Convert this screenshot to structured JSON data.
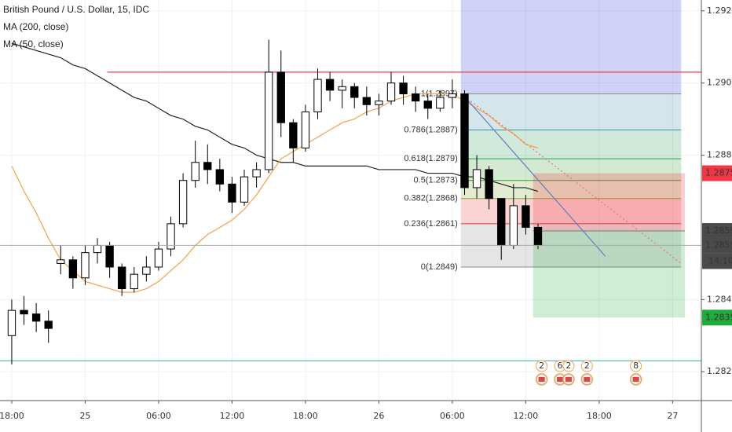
{
  "chart_data": {
    "type": "candlestick",
    "title": "British Pound / U.S. Dollar, 15, IDC",
    "x": [
      0,
      1,
      2,
      3,
      4,
      5,
      6,
      7,
      8,
      9,
      10,
      11,
      12,
      13,
      14,
      15,
      16,
      17,
      18,
      19,
      20,
      21,
      22,
      23,
      24,
      25,
      26,
      27,
      28,
      29,
      30,
      31,
      32,
      33,
      34,
      35,
      36,
      37,
      38,
      39,
      40,
      41,
      42,
      43
    ],
    "open": [
      1.283,
      1.2837,
      1.2836,
      1.2834,
      1.285,
      1.2851,
      1.2846,
      1.2853,
      1.2855,
      1.2849,
      1.2843,
      1.2847,
      1.2849,
      1.2854,
      1.2861,
      1.2873,
      1.2878,
      1.2876,
      1.2872,
      1.2867,
      1.2874,
      1.2876,
      1.2903,
      1.2889,
      1.2882,
      1.2892,
      1.2901,
      1.2898,
      1.2899,
      1.2896,
      1.2894,
      1.2895,
      1.29,
      1.2897,
      1.2895,
      1.2893,
      1.2896,
      1.2897,
      1.2871,
      1.2876,
      1.2868,
      1.2855,
      1.2866,
      1.286
    ],
    "high": [
      1.284,
      1.2841,
      1.2839,
      1.2837,
      1.2855,
      1.2852,
      1.2855,
      1.2857,
      1.2856,
      1.285,
      1.2849,
      1.2852,
      1.2856,
      1.2863,
      1.2875,
      1.2884,
      1.2883,
      1.2879,
      1.2874,
      1.2876,
      1.2878,
      1.2912,
      1.2909,
      1.289,
      1.2894,
      1.2904,
      1.2903,
      1.2901,
      1.29,
      1.2899,
      1.2897,
      1.2903,
      1.2902,
      1.2899,
      1.2897,
      1.2898,
      1.2901,
      1.2898,
      1.288,
      1.2877,
      1.2868,
      1.2872,
      1.2869,
      1.2861
    ],
    "low": [
      1.2822,
      1.2833,
      1.2831,
      1.2828,
      1.2847,
      1.2843,
      1.2844,
      1.285,
      1.2846,
      1.2841,
      1.2842,
      1.2845,
      1.2848,
      1.2852,
      1.286,
      1.2871,
      1.2872,
      1.287,
      1.2864,
      1.2866,
      1.2871,
      1.2875,
      1.2885,
      1.2878,
      1.2881,
      1.289,
      1.2895,
      1.2893,
      1.2893,
      1.2891,
      1.2891,
      1.2894,
      1.2894,
      1.2892,
      1.289,
      1.2892,
      1.2893,
      1.2869,
      1.2868,
      1.2865,
      1.2851,
      1.2854,
      1.2858,
      1.2854
    ],
    "close": [
      1.2837,
      1.2836,
      1.2834,
      1.2832,
      1.2851,
      1.2846,
      1.2853,
      1.2855,
      1.2849,
      1.2843,
      1.2847,
      1.2849,
      1.2854,
      1.2861,
      1.2873,
      1.2878,
      1.2876,
      1.2872,
      1.2867,
      1.2874,
      1.2876,
      1.2903,
      1.2889,
      1.2882,
      1.2892,
      1.2901,
      1.2898,
      1.2899,
      1.2896,
      1.2894,
      1.2895,
      1.29,
      1.2897,
      1.2895,
      1.2893,
      1.2896,
      1.2897,
      1.2871,
      1.2876,
      1.2868,
      1.2855,
      1.2866,
      1.286,
      1.2855
    ],
    "series": [
      {
        "name": "MA (200, close)",
        "color": "#222222",
        "values": [
          1.2911,
          1.291,
          1.2909,
          1.2908,
          1.2907,
          1.2905,
          1.2904,
          1.2902,
          1.29,
          1.2898,
          1.2896,
          1.2895,
          1.2893,
          1.2891,
          1.289,
          1.2888,
          1.2887,
          1.2885,
          1.2883,
          1.2882,
          1.288,
          1.2879,
          1.2878,
          1.2878,
          1.2877,
          1.2877,
          1.2877,
          1.2877,
          1.2877,
          1.2877,
          1.2876,
          1.2876,
          1.2876,
          1.2876,
          1.2875,
          1.2875,
          1.2875,
          1.2874,
          1.2874,
          1.2873,
          1.2872,
          1.2871,
          1.2871,
          1.287
        ]
      },
      {
        "name": "MA (50, close)",
        "color": "#f5a04a",
        "values": [
          1.2877,
          1.287,
          1.2864,
          1.2857,
          1.2851,
          1.2848,
          1.2845,
          1.2844,
          1.2843,
          1.2842,
          1.2842,
          1.2843,
          1.2845,
          1.2848,
          1.2851,
          1.2855,
          1.2858,
          1.286,
          1.2862,
          1.2865,
          1.2869,
          1.2874,
          1.2879,
          1.2881,
          1.2883,
          1.2885,
          1.2887,
          1.2889,
          1.289,
          1.2892,
          1.2893,
          1.2895,
          1.2896,
          1.2897,
          1.2897,
          1.2897,
          1.2897,
          1.2895,
          1.2893,
          1.2891,
          1.2888,
          1.2886,
          1.2883,
          1.2882
        ]
      }
    ],
    "xlim": [
      -0.96,
      56.35
    ],
    "ylim": [
      1.2812,
      1.2923
    ],
    "xticks": [
      {
        "value": 0,
        "label": "18:00"
      },
      {
        "value": 6,
        "label": "25"
      },
      {
        "value": 12,
        "label": "06:00"
      },
      {
        "value": 18,
        "label": "12:00"
      },
      {
        "value": 24,
        "label": "18:00"
      },
      {
        "value": 30,
        "label": "26"
      },
      {
        "value": 36,
        "label": "06:00"
      },
      {
        "value": 42,
        "label": "12:00"
      },
      {
        "value": 48,
        "label": "18:00"
      },
      {
        "value": 54,
        "label": "27"
      }
    ],
    "yticks": [
      {
        "value": 1.292,
        "label": "1.2920"
      },
      {
        "value": 1.29,
        "label": "1.2900"
      },
      {
        "value": 1.288,
        "label": "1.2880"
      },
      {
        "value": 1.284,
        "label": "1.2840"
      },
      {
        "value": 1.282,
        "label": "1.2820"
      }
    ],
    "grid": true,
    "up_color": "#ffffff",
    "down_color": "#000000",
    "fib": {
      "x_start": 36.7,
      "x_end": 54.7,
      "levels": [
        {
          "label": "1(1.2897)",
          "price": 1.2897,
          "color": "#8a8a8a"
        },
        {
          "label": "0.786(1.2887)",
          "price": 1.2887,
          "color": "#3a8fa8"
        },
        {
          "label": "0.618(1.2879)",
          "price": 1.2879,
          "color": "#2e9a58"
        },
        {
          "label": "0.5(1.2873)",
          "price": 1.2873,
          "color": "#3a9a2e"
        },
        {
          "label": "0.382(1.2868)",
          "price": 1.2868,
          "color": "#7fa832"
        },
        {
          "label": "0.236(1.2861)",
          "price": 1.2861,
          "color": "#e53935"
        },
        {
          "label": "0(1.2849)",
          "price": 1.2849,
          "color": "#8a8a8a"
        }
      ]
    },
    "position": {
      "x_start": 42.6,
      "x_end": 55.0,
      "entry": 1.2859,
      "stop": 1.2875,
      "target": 1.2835
    },
    "hlines": [
      {
        "price": 1.2903,
        "color": "#f23645",
        "x_start": 7.8
      },
      {
        "price": 1.2823,
        "color": "#4db6ac",
        "x_start": -0.96
      }
    ],
    "trendlines": [
      {
        "x": [
          36.8,
          48.5
        ],
        "y": [
          1.2897,
          1.2852
        ],
        "color": "#5d7fbf",
        "dashed": false
      },
      {
        "x": [
          37.5,
          54.7
        ],
        "y": [
          1.2895,
          1.285
        ],
        "color": "#e57373",
        "dashed": true
      }
    ],
    "price_tags": [
      {
        "value": 1.2875,
        "color": "#f23645",
        "line": false
      },
      {
        "value": 1.2859,
        "color": "#4a4a4a",
        "line": false
      },
      {
        "value": 1.2855,
        "color": "#4a4a4a",
        "line": true
      }
    ],
    "countdown": "14:10",
    "target_tag": {
      "label": "1.2835",
      "color": "#22ab3b"
    },
    "events": [
      {
        "x": 43.3,
        "label": "2"
      },
      {
        "x": 44.8,
        "label": "6"
      },
      {
        "x": 45.5,
        "label": "2"
      },
      {
        "x": 47.0,
        "label": "2"
      },
      {
        "x": 51.0,
        "label": "8"
      }
    ]
  }
}
